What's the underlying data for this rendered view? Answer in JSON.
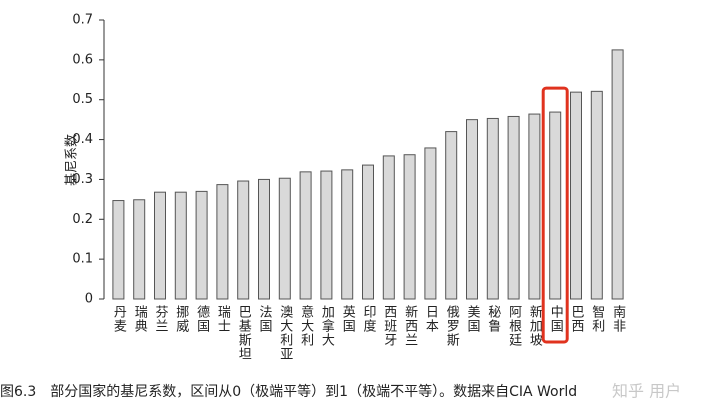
{
  "chart_data": {
    "type": "bar",
    "y_label": "基尼系数",
    "caption": "图6.3　部分国家的基尼系数，区间从0（极端平等）到1（极端不平等）。数据来自CIA World",
    "watermark": "知乎 用户",
    "categories": [
      "丹麦",
      "瑞典",
      "芬兰",
      "挪威",
      "德国",
      "瑞士",
      "巴基斯坦",
      "法国",
      "澳大利亚",
      "意大利",
      "加拿大",
      "英国",
      "印度",
      "西班牙",
      "新西兰",
      "日本",
      "俄罗斯",
      "美国",
      "秘鲁",
      "阿根廷",
      "新加坡",
      "中国",
      "巴西",
      "智利",
      "南非"
    ],
    "values": [
      0.247,
      0.249,
      0.268,
      0.268,
      0.27,
      0.287,
      0.296,
      0.3,
      0.303,
      0.319,
      0.321,
      0.324,
      0.336,
      0.359,
      0.362,
      0.379,
      0.42,
      0.45,
      0.453,
      0.458,
      0.464,
      0.469,
      0.519,
      0.521,
      0.625
    ],
    "color": "#d9d9d9",
    "highlight": "中国",
    "highlight_color": "#e0321e",
    "ylim": [
      0,
      0.7
    ],
    "yticks": [
      0,
      0.1,
      0.2,
      0.3,
      0.4,
      0.5,
      0.6,
      0.7
    ]
  }
}
